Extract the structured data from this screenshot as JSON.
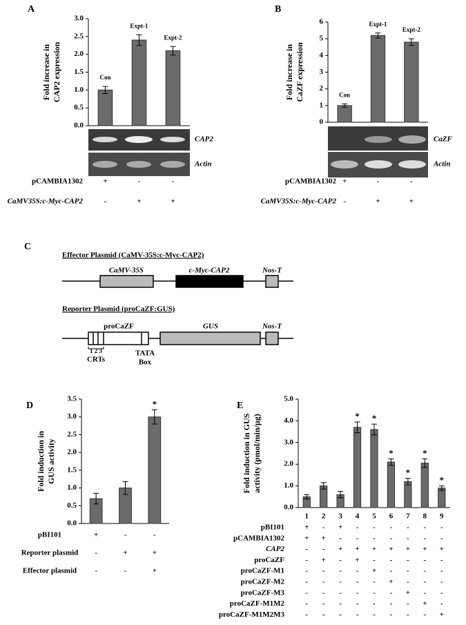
{
  "panels": [
    "A",
    "B",
    "C",
    "D",
    "E"
  ],
  "chart_data": [
    {
      "type": "bar",
      "y_label": [
        "Fold increase in",
        "CAP2 expression"
      ],
      "categories": [
        "Con",
        "Expt-1",
        "Expt-2"
      ],
      "values": [
        1.0,
        2.4,
        2.1
      ],
      "errors": [
        0.1,
        0.15,
        0.12
      ],
      "color": "#6b6b6b",
      "ylim": [
        0,
        3
      ],
      "yticks": [
        {
          "value": 0,
          "label": "0.0"
        },
        0.5,
        {
          "value": 1,
          "label": "1.0"
        },
        1.5,
        {
          "value": 2,
          "label": "2.0"
        },
        2.5,
        {
          "value": 3,
          "label": "3.0"
        }
      ]
    },
    {
      "type": "bar",
      "y_label": [
        "Fold increase in",
        "CaZF expression"
      ],
      "categories": [
        "Con",
        "Expt-1",
        "Expt-2"
      ],
      "values": [
        1.0,
        5.2,
        4.8
      ],
      "errors": [
        0.1,
        0.15,
        0.2
      ],
      "color": "#6b6b6b",
      "ylim": [
        0,
        6
      ],
      "yticks": [
        0,
        1,
        2,
        3,
        4,
        5,
        6
      ]
    },
    {
      "type": "bar",
      "y_label": [
        "Fold induction in",
        "GUS activity"
      ],
      "categories": [
        null,
        null,
        null
      ],
      "values": [
        0.7,
        1.0,
        3.0
      ],
      "errors": [
        0.15,
        0.18,
        0.2
      ],
      "significance": [
        null,
        null,
        "*"
      ],
      "color": "#6b6b6b",
      "ylim": [
        0,
        3.5
      ],
      "yticks": [
        {
          "value": 0,
          "label": "0.0"
        },
        0.5,
        {
          "value": 1,
          "label": "1.0"
        },
        1.5,
        {
          "value": 2,
          "label": "2.0"
        },
        2.5,
        {
          "value": 3,
          "label": "3.0"
        },
        3.5
      ]
    },
    {
      "type": "bar",
      "y_label": [
        "Fold induction  in GUS",
        "activity (pmol/min/µg)"
      ],
      "categories": [
        "1",
        "2",
        "3",
        "4",
        "5",
        "6",
        "7",
        "8",
        "9"
      ],
      "values": [
        0.5,
        1.0,
        0.6,
        3.7,
        3.6,
        2.1,
        1.2,
        2.05,
        0.9
      ],
      "errors": [
        0.1,
        0.15,
        0.15,
        0.25,
        0.25,
        0.15,
        0.15,
        0.2,
        0.1
      ],
      "significance": [
        null,
        null,
        null,
        "*",
        "*",
        "*",
        "*",
        "*",
        "*"
      ],
      "color": "#6b6b6b",
      "ylim": [
        0,
        5
      ],
      "yticks": [
        {
          "value": 0,
          "label": "0.0"
        },
        {
          "value": 1,
          "label": "1.0"
        },
        {
          "value": 2,
          "label": "2.0"
        },
        {
          "value": 3,
          "label": "3.0"
        },
        {
          "value": 4,
          "label": "4.0"
        },
        {
          "value": 5,
          "label": "5.0"
        }
      ]
    }
  ],
  "gels": [
    {
      "labels": [
        "CAP2",
        "Actin"
      ]
    },
    {
      "labels": [
        "CaZF",
        "Actin"
      ]
    }
  ],
  "tables": [
    {
      "rows": [
        {
          "label": "pCAMBIA1302",
          "cells": [
            "+",
            "-",
            "-"
          ]
        },
        {
          "label": "CaMV35S:c-Myc-CAP2",
          "cells": [
            "-",
            "+",
            "+"
          ]
        }
      ]
    },
    {
      "rows": [
        {
          "label": "pCAMBIA1302",
          "cells": [
            "+",
            "-",
            "-"
          ]
        },
        {
          "label": "CaMV35S:c-Myc-CAP2",
          "cells": [
            "-",
            "+",
            "+"
          ]
        }
      ]
    },
    {
      "rows": [
        {
          "label": "pBI101",
          "cells": [
            "+",
            "-",
            "-"
          ]
        },
        {
          "label": "Reporter plasmid",
          "cells": [
            "-",
            "+",
            "+"
          ]
        },
        {
          "label": "Effector plasmid",
          "cells": [
            "-",
            "-",
            "+"
          ]
        }
      ]
    },
    {
      "rows": [
        {
          "label": "pBI101",
          "cells": [
            "+",
            "-",
            "+",
            "-",
            "-",
            "-",
            "-",
            "-",
            "-"
          ]
        },
        {
          "label": "pCAMBIA1302",
          "cells": [
            "+",
            "+",
            "-",
            "-",
            "-",
            "-",
            "-",
            "-",
            "-"
          ]
        },
        {
          "label": "CAP2",
          "cells": [
            "-",
            "-",
            "+",
            "+",
            "+",
            "+",
            "+",
            "+",
            "+"
          ]
        },
        {
          "label": "proCaZF",
          "cells": [
            "-",
            "+",
            "-",
            "+",
            "-",
            "-",
            "-",
            "-",
            "-"
          ]
        },
        {
          "label": "proCaZF-M1",
          "cells": [
            "-",
            "-",
            "-",
            "-",
            "+",
            "-",
            "-",
            "-",
            "-"
          ]
        },
        {
          "label": "proCaZF-M2",
          "cells": [
            "-",
            "-",
            "-",
            "-",
            "-",
            "+",
            "-",
            "-",
            "-"
          ]
        },
        {
          "label": "proCaZF-M3",
          "cells": [
            "-",
            "-",
            "-",
            "-",
            "-",
            "-",
            "+",
            "-",
            "-"
          ]
        },
        {
          "label": "proCaZF-M1M2",
          "cells": [
            "-",
            "-",
            "-",
            "-",
            "-",
            "-",
            "-",
            "+",
            "-"
          ]
        },
        {
          "label": "proCaZF-M1M2M3",
          "cells": [
            "-",
            "-",
            "-",
            "-",
            "-",
            "-",
            "-",
            "-",
            "+"
          ]
        }
      ]
    }
  ],
  "diagram": {
    "effector_title": "Effector Plasmid (CaMV-35S:c-Myc-CAP2)",
    "effector_parts": [
      "CaMV-35S",
      "c-Myc-CAP2",
      "Nos-T"
    ],
    "reporter_title": "Reporter Plasmid (proCaZF:GUS)",
    "reporter_parts": [
      "proCaZF",
      "GUS",
      "Nos-T"
    ],
    "crt_numbers": "1 2 3",
    "crts": "CRTs",
    "tata": [
      "TATA",
      "Box"
    ]
  }
}
